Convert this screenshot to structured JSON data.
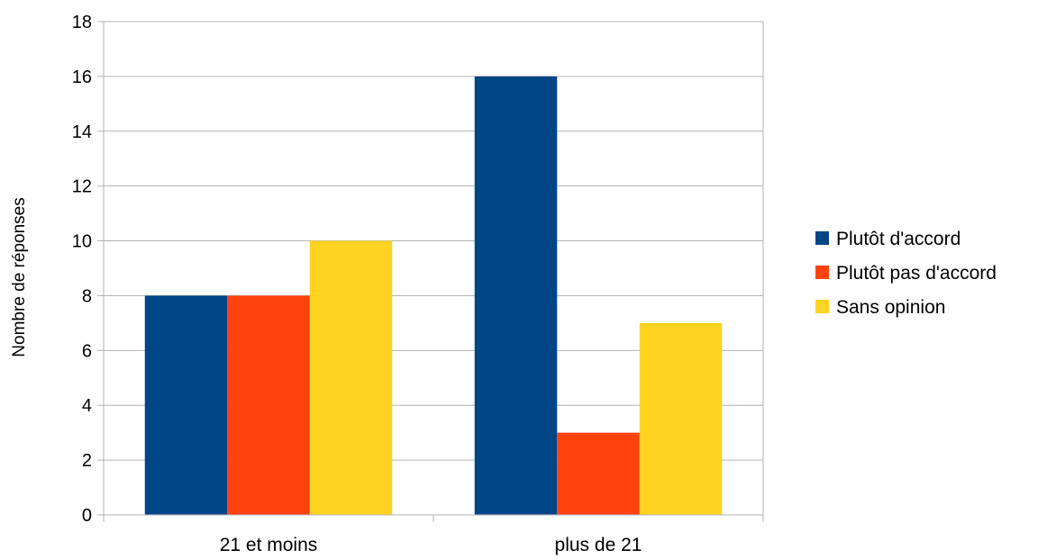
{
  "chart_data": {
    "type": "bar",
    "title": "",
    "xlabel": "",
    "ylabel": "Nombre de réponses",
    "categories": [
      "21 et moins",
      "plus de 21"
    ],
    "series": [
      {
        "name": "Plutôt d'accord",
        "values": [
          8,
          16
        ],
        "color": "#004586"
      },
      {
        "name": "Plutôt pas d'accord",
        "values": [
          8,
          3
        ],
        "color": "#ff420e"
      },
      {
        "name": "Sans opinion",
        "values": [
          10,
          7
        ],
        "color": "#ffd320"
      }
    ],
    "ylim": [
      0,
      18
    ],
    "yticks": [
      0,
      2,
      4,
      6,
      8,
      10,
      12,
      14,
      16,
      18
    ],
    "grid": true,
    "legend": "right"
  }
}
